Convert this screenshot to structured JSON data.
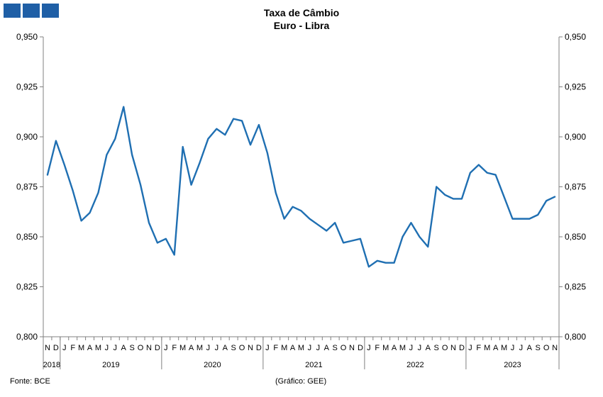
{
  "header": {
    "title": "Taxa de Câmbio",
    "subtitle": "Euro - Libra"
  },
  "footer": {
    "source": "Fonte: BCE",
    "credit": "(Gráfico: GEE)"
  },
  "colors": {
    "line": "#1f6fb2",
    "logo": "#1f5fa6",
    "axis": "#808080"
  },
  "chart_data": {
    "type": "line",
    "title": "Taxa de Câmbio",
    "subtitle": "Euro - Libra",
    "ylim": [
      0.8,
      0.95
    ],
    "yticks": [
      "0,800",
      "0,825",
      "0,850",
      "0,875",
      "0,900",
      "0,925",
      "0,950"
    ],
    "y_ticks_values": [
      0.8,
      0.825,
      0.85,
      0.875,
      0.9,
      0.925,
      0.95
    ],
    "grid": false,
    "legend": "none",
    "month_labels": [
      "N",
      "D",
      "J",
      "F",
      "M",
      "A",
      "M",
      "J",
      "J",
      "A",
      "S",
      "O",
      "N",
      "D",
      "J",
      "F",
      "M",
      "A",
      "M",
      "J",
      "J",
      "A",
      "S",
      "O",
      "N",
      "D",
      "J",
      "F",
      "M",
      "A",
      "M",
      "J",
      "J",
      "A",
      "S",
      "O",
      "N",
      "D",
      "J",
      "F",
      "M",
      "A",
      "M",
      "J",
      "J",
      "A",
      "S",
      "O",
      "N",
      "D",
      "J",
      "F",
      "M",
      "A",
      "M",
      "J",
      "J",
      "A",
      "S",
      "O",
      "N"
    ],
    "years": [
      {
        "label": "2018",
        "start": 0,
        "count": 2
      },
      {
        "label": "2019",
        "start": 2,
        "count": 12
      },
      {
        "label": "2020",
        "start": 14,
        "count": 12
      },
      {
        "label": "2021",
        "start": 26,
        "count": 12
      },
      {
        "label": "2022",
        "start": 38,
        "count": 12
      },
      {
        "label": "2023",
        "start": 50,
        "count": 11
      }
    ],
    "series": [
      {
        "values": [
          0.881,
          0.898,
          0.886,
          0.873,
          0.858,
          0.862,
          0.872,
          0.891,
          0.899,
          0.915,
          0.891,
          0.876,
          0.857,
          0.847,
          0.849,
          0.841,
          0.895,
          0.876,
          0.887,
          0.899,
          0.904,
          0.901,
          0.909,
          0.908,
          0.896,
          0.906,
          0.892,
          0.872,
          0.859,
          0.865,
          0.863,
          0.859,
          0.856,
          0.853,
          0.857,
          0.847,
          0.848,
          0.849,
          0.835,
          0.838,
          0.837,
          0.837,
          0.85,
          0.857,
          0.85,
          0.845,
          0.875,
          0.871,
          0.869,
          0.869,
          0.882,
          0.886,
          0.882,
          0.881,
          0.87,
          0.859,
          0.859,
          0.859,
          0.861,
          0.868,
          0.87
        ]
      }
    ]
  }
}
